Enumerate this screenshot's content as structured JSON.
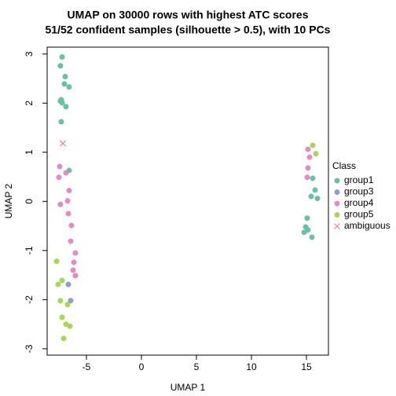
{
  "chart_data": {
    "type": "scatter",
    "title": "UMAP on 30000 rows with highest ATC scores",
    "subtitle": "51/52 confident samples (silhouette > 0.5), with 10 PCs",
    "x_label": "UMAP 1",
    "y_label": "UMAP 2",
    "xlim": [
      -8.57,
      17.0
    ],
    "ylim": [
      -3.13,
      3.14
    ],
    "xticks": [
      -5,
      0,
      5,
      10,
      15
    ],
    "yticks": [
      -3,
      -2,
      -1,
      0,
      1,
      2,
      3
    ],
    "legend_title": "Class",
    "legend_position": "right",
    "series": [
      {
        "name": "group1",
        "color": "#66C2A5",
        "marker": "circle",
        "x": [
          -7.21,
          -7.36,
          -6.93,
          -7.0,
          -6.57,
          -7.29,
          -7.36,
          -7.21,
          -6.86,
          -7.29,
          -6.57,
          15.57,
          15.79,
          15.43,
          16.0,
          15.07,
          14.93,
          15.14,
          14.79,
          15.5
        ],
        "values": [
          2.94,
          2.76,
          2.54,
          2.39,
          2.33,
          2.07,
          2.04,
          2.01,
          1.93,
          1.62,
          0.63,
          0.47,
          0.23,
          0.1,
          0.06,
          -0.34,
          -0.52,
          -0.58,
          -0.63,
          -0.73
        ]
      },
      {
        "name": "group3",
        "color": "#8DA0CB",
        "marker": "circle",
        "x": [
          -6.64,
          -6.43
        ],
        "values": [
          -1.69,
          -2.02
        ]
      },
      {
        "name": "group4",
        "color": "#E78AC3",
        "marker": "circle",
        "x": [
          -7.43,
          -6.86,
          -7.5,
          -6.57,
          -6.71,
          -7.36,
          -6.64,
          -6.36,
          -6.43,
          -6.0,
          -6.14,
          -6.21,
          -6.0,
          15.14,
          15.29,
          15.14,
          15.07
        ],
        "values": [
          0.71,
          0.58,
          0.49,
          0.22,
          0.01,
          -0.06,
          -0.25,
          -0.49,
          -0.81,
          -1.05,
          -1.24,
          -1.4,
          -1.51,
          1.06,
          0.9,
          0.68,
          0.49
        ]
      },
      {
        "name": "group5",
        "color": "#A6D854",
        "marker": "circle",
        "x": [
          15.57,
          15.86,
          -7.71,
          -7.21,
          -7.57,
          -7.36,
          -6.71,
          -7.21,
          -6.86,
          -6.5,
          -7.07
        ],
        "values": [
          1.14,
          0.97,
          -1.22,
          -1.61,
          -1.69,
          -2.02,
          -2.1,
          -2.36,
          -2.5,
          -2.54,
          -2.79
        ]
      },
      {
        "name": "ambiguous",
        "color": "#F08080",
        "marker": "x",
        "x": [
          -7.14
        ],
        "values": [
          1.18
        ]
      }
    ]
  }
}
